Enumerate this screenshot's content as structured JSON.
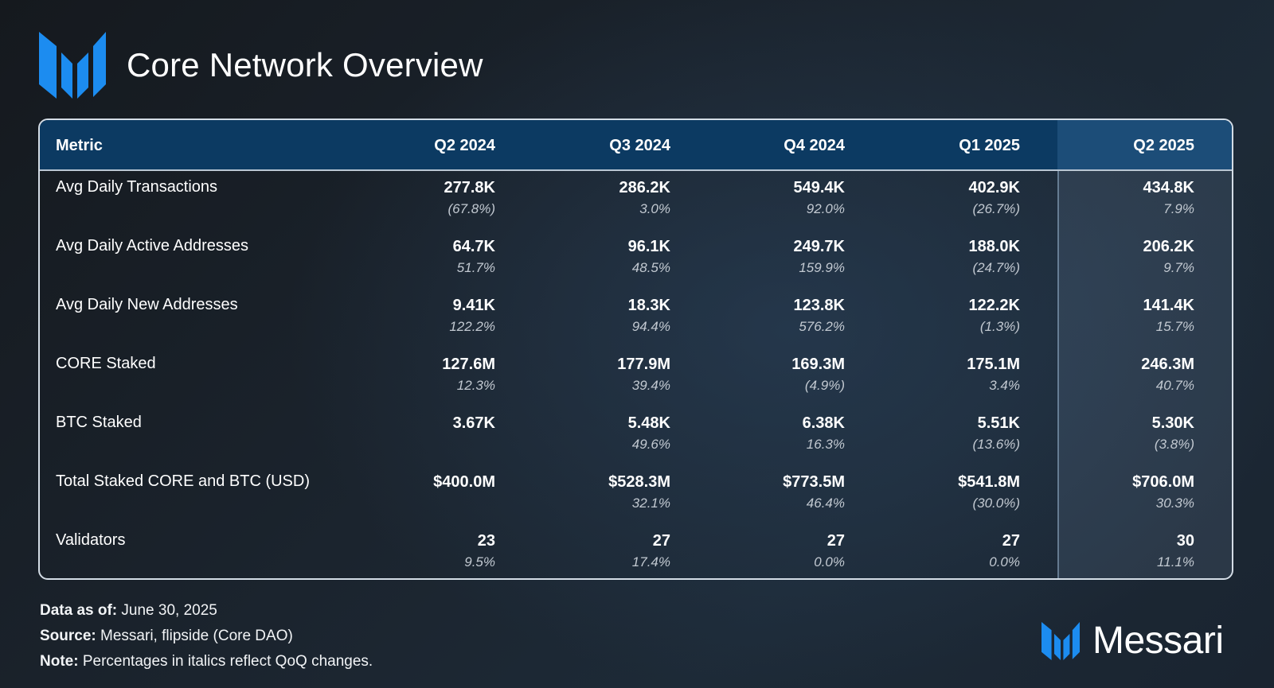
{
  "header": {
    "title": "Core Network Overview",
    "logo_icon": "messari-logo-icon"
  },
  "chart_data": {
    "type": "table",
    "title": "Core Network Overview",
    "columns": [
      "Metric",
      "Q2 2024",
      "Q3 2024",
      "Q4 2024",
      "Q1 2025",
      "Q2 2025"
    ],
    "highlighted_column": "Q2 2025",
    "rows": [
      {
        "metric": "Avg Daily Transactions",
        "cells": [
          {
            "value": "277.8K",
            "change": "(67.8%)"
          },
          {
            "value": "286.2K",
            "change": "3.0%"
          },
          {
            "value": "549.4K",
            "change": "92.0%"
          },
          {
            "value": "402.9K",
            "change": "(26.7%)"
          },
          {
            "value": "434.8K",
            "change": "7.9%"
          }
        ]
      },
      {
        "metric": "Avg Daily Active Addresses",
        "cells": [
          {
            "value": "64.7K",
            "change": "51.7%"
          },
          {
            "value": "96.1K",
            "change": "48.5%"
          },
          {
            "value": "249.7K",
            "change": "159.9%"
          },
          {
            "value": "188.0K",
            "change": "(24.7%)"
          },
          {
            "value": "206.2K",
            "change": "9.7%"
          }
        ]
      },
      {
        "metric": "Avg Daily New Addresses",
        "cells": [
          {
            "value": "9.41K",
            "change": "122.2%"
          },
          {
            "value": "18.3K",
            "change": "94.4%"
          },
          {
            "value": "123.8K",
            "change": "576.2%"
          },
          {
            "value": "122.2K",
            "change": "(1.3%)"
          },
          {
            "value": "141.4K",
            "change": "15.7%"
          }
        ]
      },
      {
        "metric": "CORE Staked",
        "cells": [
          {
            "value": "127.6M",
            "change": "12.3%"
          },
          {
            "value": "177.9M",
            "change": "39.4%"
          },
          {
            "value": "169.3M",
            "change": "(4.9%)"
          },
          {
            "value": "175.1M",
            "change": "3.4%"
          },
          {
            "value": "246.3M",
            "change": "40.7%"
          }
        ]
      },
      {
        "metric": "BTC Staked",
        "cells": [
          {
            "value": "3.67K",
            "change": ""
          },
          {
            "value": "5.48K",
            "change": "49.6%"
          },
          {
            "value": "6.38K",
            "change": "16.3%"
          },
          {
            "value": "5.51K",
            "change": "(13.6%)"
          },
          {
            "value": "5.30K",
            "change": "(3.8%)"
          }
        ]
      },
      {
        "metric": "Total Staked CORE and BTC (USD)",
        "cells": [
          {
            "value": "$400.0M",
            "change": ""
          },
          {
            "value": "$528.3M",
            "change": "32.1%"
          },
          {
            "value": "$773.5M",
            "change": "46.4%"
          },
          {
            "value": "$541.8M",
            "change": "(30.0%)"
          },
          {
            "value": "$706.0M",
            "change": "30.3%"
          }
        ]
      },
      {
        "metric": "Validators",
        "cells": [
          {
            "value": "23",
            "change": "9.5%"
          },
          {
            "value": "27",
            "change": "17.4%"
          },
          {
            "value": "27",
            "change": "0.0%"
          },
          {
            "value": "27",
            "change": "0.0%"
          },
          {
            "value": "30",
            "change": "11.1%"
          }
        ]
      }
    ]
  },
  "footer": {
    "data_as_of_label": "Data as of:",
    "data_as_of_value": "June 30, 2025",
    "source_label": "Source:",
    "source_value": "Messari, flipside (Core DAO)",
    "note_label": "Note:",
    "note_value": "Percentages in italics reflect QoQ changes."
  },
  "brand": {
    "name": "Messari",
    "icon": "messari-logo-icon"
  },
  "colors": {
    "logo_blue": "#1c8cf0",
    "header_bg": "#0c3a62",
    "highlight_header_bg": "#1c4d78",
    "change_text": "#c2c9d1"
  }
}
